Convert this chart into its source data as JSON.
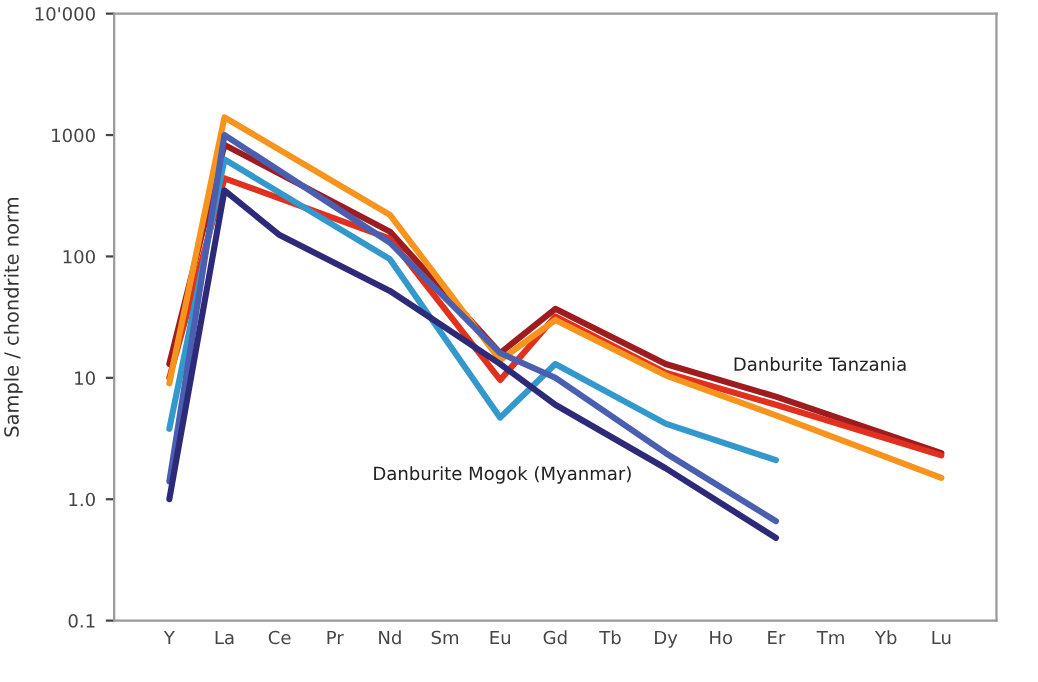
{
  "chart_data": {
    "type": "line",
    "ylabel": "Sample / chondrite norm",
    "log": true,
    "categories": [
      "Y",
      "La",
      "Ce",
      "Pr",
      "Nd",
      "Sm",
      "Eu",
      "Gd",
      "Tb",
      "Dy",
      "Ho",
      "Er",
      "Tm",
      "Yb",
      "Lu"
    ],
    "ylim": [
      0.1,
      10000
    ],
    "yticks": [
      0.1,
      {
        "value": 1,
        "label": "1.0"
      },
      10,
      100,
      1000,
      {
        "value": 10000,
        "label": "10'000"
      }
    ],
    "series": [
      {
        "color": "#9e1b1f",
        "values": [
          13,
          830,
          null,
          null,
          160,
          null,
          16,
          37,
          null,
          13,
          null,
          7,
          null,
          null,
          2.4
        ]
      },
      {
        "color": "#e0301e",
        "values": [
          10,
          440,
          null,
          null,
          140,
          null,
          9.6,
          32,
          null,
          11,
          null,
          6,
          null,
          null,
          2.3
        ]
      },
      {
        "color": "#f7941d",
        "values": [
          9,
          1400,
          null,
          null,
          220,
          null,
          14,
          30,
          null,
          10.5,
          null,
          4.9,
          null,
          null,
          1.5
        ]
      },
      {
        "color": "#3399cc",
        "values": [
          3.8,
          630,
          null,
          null,
          95,
          null,
          4.7,
          13,
          null,
          4.2,
          null,
          2.1,
          null,
          null,
          null
        ]
      },
      {
        "color": "#4a5fb0",
        "values": [
          1.4,
          1000,
          null,
          null,
          130,
          null,
          16,
          10,
          null,
          2.4,
          null,
          0.66,
          null,
          null,
          null
        ]
      },
      {
        "color": "#2e2a7a",
        "values": [
          1.0,
          350,
          150,
          null,
          52,
          null,
          13,
          6,
          null,
          1.8,
          null,
          0.48,
          null,
          null,
          null
        ]
      }
    ],
    "annotations": [
      "Danburite Tanzania",
      "Danburite Mogok (Myanmar)"
    ]
  }
}
